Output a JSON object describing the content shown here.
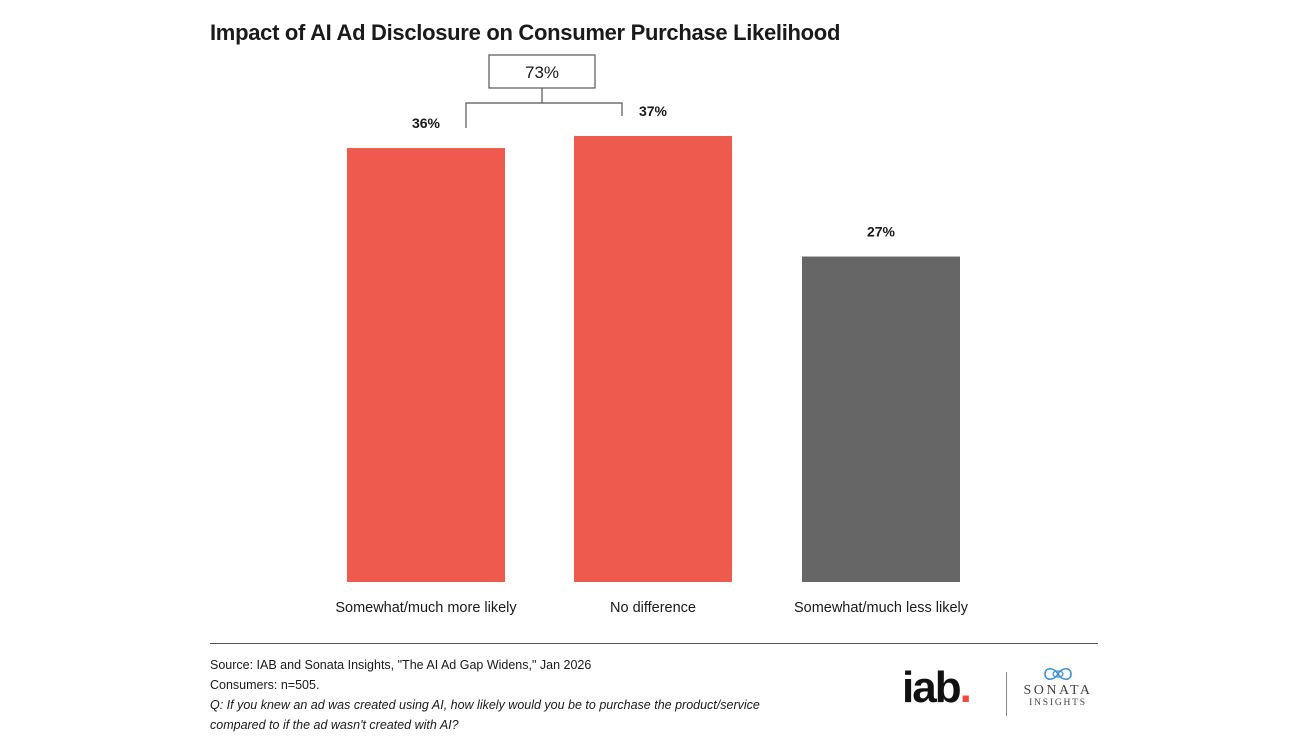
{
  "chart_data": {
    "type": "bar",
    "title": "Impact of AI Ad Disclosure on Consumer Purchase Likelihood",
    "categories": [
      "Somewhat/much more likely",
      "No difference",
      "Somewhat/much less likely"
    ],
    "values": [
      36,
      37,
      27
    ],
    "value_labels": [
      "36%",
      "37%",
      "27%"
    ],
    "colors": [
      "#ef5a4e",
      "#ef5a4e",
      "#666666"
    ],
    "ylim": [
      0,
      37
    ],
    "xlabel": "",
    "ylabel": "",
    "grid": false,
    "annotations": [
      {
        "text": "73%",
        "spans_categories": [
          0,
          1
        ]
      }
    ]
  },
  "footer": {
    "source": "Source: IAB and Sonata Insights, \"The AI Ad Gap Widens,\" Jan 2026",
    "sample": "Consumers: n=505.",
    "question_line1": "Q: If you knew an ad was created using AI, how likely would you be to purchase the product/service",
    "question_line2": "compared to if the ad wasn't created with AI?"
  },
  "logos": {
    "iab_text": "iab",
    "iab_dot": ".",
    "sonata_name": "SONATA",
    "sonata_sub": "INSIGHTS"
  },
  "colors": {
    "accent": "#ef5a4e",
    "neutral": "#666666"
  }
}
